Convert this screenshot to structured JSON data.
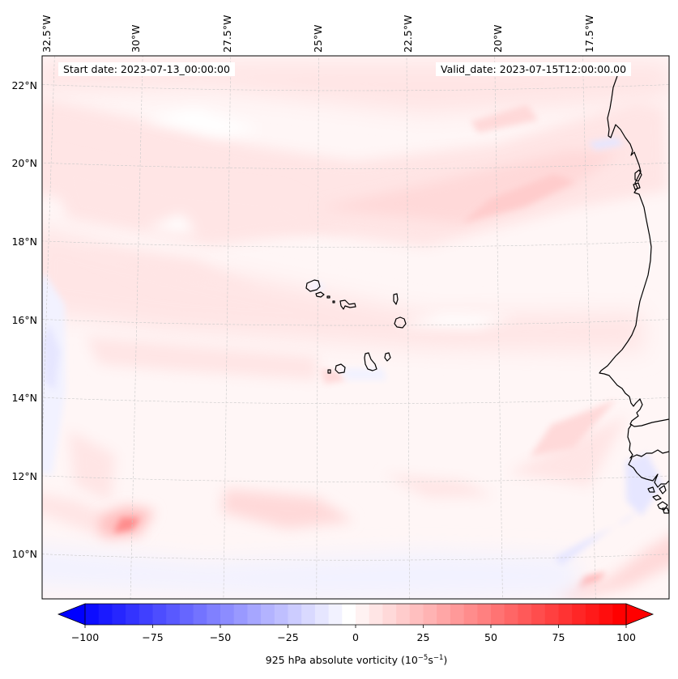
{
  "map": {
    "title_left": "Start date: 2023-07-13_00:00:00",
    "title_right": "Valid_date: 2023-07-15T12:00:00.00",
    "extent": {
      "lon_min": -33.0,
      "lon_max": -15.2,
      "lat_min": 8.9,
      "lat_max": 22.8
    },
    "lon_ticks": [
      {
        "value": -32.5,
        "label": "32.5°W"
      },
      {
        "value": -30.0,
        "label": "30°W"
      },
      {
        "value": -27.5,
        "label": "27.5°W"
      },
      {
        "value": -25.0,
        "label": "25°W"
      },
      {
        "value": -22.5,
        "label": "22.5°W"
      },
      {
        "value": -20.0,
        "label": "20°W"
      },
      {
        "value": -17.5,
        "label": "17.5°W"
      }
    ],
    "lat_ticks": [
      {
        "value": 22,
        "label": "22°N"
      },
      {
        "value": 20,
        "label": "20°N"
      },
      {
        "value": 18,
        "label": "18°N"
      },
      {
        "value": 16,
        "label": "16°N"
      },
      {
        "value": 14,
        "label": "14°N"
      },
      {
        "value": 12,
        "label": "12°N"
      },
      {
        "value": 10,
        "label": "10°N"
      }
    ],
    "gridlines": true,
    "features": [
      {
        "name": "Cape Verde Islands",
        "type": "islands"
      },
      {
        "name": "West African coastline",
        "type": "coastline"
      }
    ],
    "field_features": [
      {
        "name": "vorticity-maximum-sw",
        "lon": -30.3,
        "lat": 10.7,
        "value": 45
      },
      {
        "name": "vorticity-band-ne",
        "lon": -19.5,
        "lat": 18.8,
        "value": 22
      },
      {
        "name": "vorticity-max-se",
        "lon": -17.2,
        "lat": 9.3,
        "value": 30
      },
      {
        "name": "negative-strip-west",
        "lon": -32.4,
        "lat": 14.8,
        "value": -10
      }
    ]
  },
  "colorbar": {
    "vmin": -100,
    "vmax": 100,
    "levels_step": 5,
    "extend": "both",
    "cmap": "bwr",
    "colors": {
      "min": "#0000ff",
      "mid": "#ffffff",
      "max": "#ff0000"
    },
    "ticks": [
      {
        "value": -100,
        "label": "−100"
      },
      {
        "value": -75,
        "label": "−75"
      },
      {
        "value": -50,
        "label": "−50"
      },
      {
        "value": -25,
        "label": "−25"
      },
      {
        "value": 0,
        "label": "0"
      },
      {
        "value": 25,
        "label": "25"
      },
      {
        "value": 50,
        "label": "50"
      },
      {
        "value": 75,
        "label": "75"
      },
      {
        "value": 100,
        "label": "100"
      }
    ],
    "label_main": "925 hPa absolute vorticity (10",
    "label_exp1": "−5",
    "label_mid": "s",
    "label_exp2": "−1",
    "label_end": ")"
  },
  "chart_data": {
    "type": "heatmap",
    "title": "925 hPa absolute vorticity",
    "subtitle_left": "Start date: 2023-07-13_00:00:00",
    "subtitle_right": "Valid_date: 2023-07-15T12:00:00.00",
    "xlabel": "Longitude",
    "ylabel": "Latitude",
    "x_ticks": [
      "32.5°W",
      "30°W",
      "27.5°W",
      "25°W",
      "22.5°W",
      "20°W",
      "17.5°W"
    ],
    "y_ticks": [
      "22°N",
      "20°N",
      "18°N",
      "16°N",
      "14°N",
      "12°N",
      "10°N"
    ],
    "xlim": [
      -33.0,
      -15.2
    ],
    "ylim": [
      8.9,
      22.8
    ],
    "colorbar_range": [
      -100,
      100
    ],
    "colorbar_label": "925 hPa absolute vorticity (10^-5 s^-1)",
    "grid": true
  }
}
